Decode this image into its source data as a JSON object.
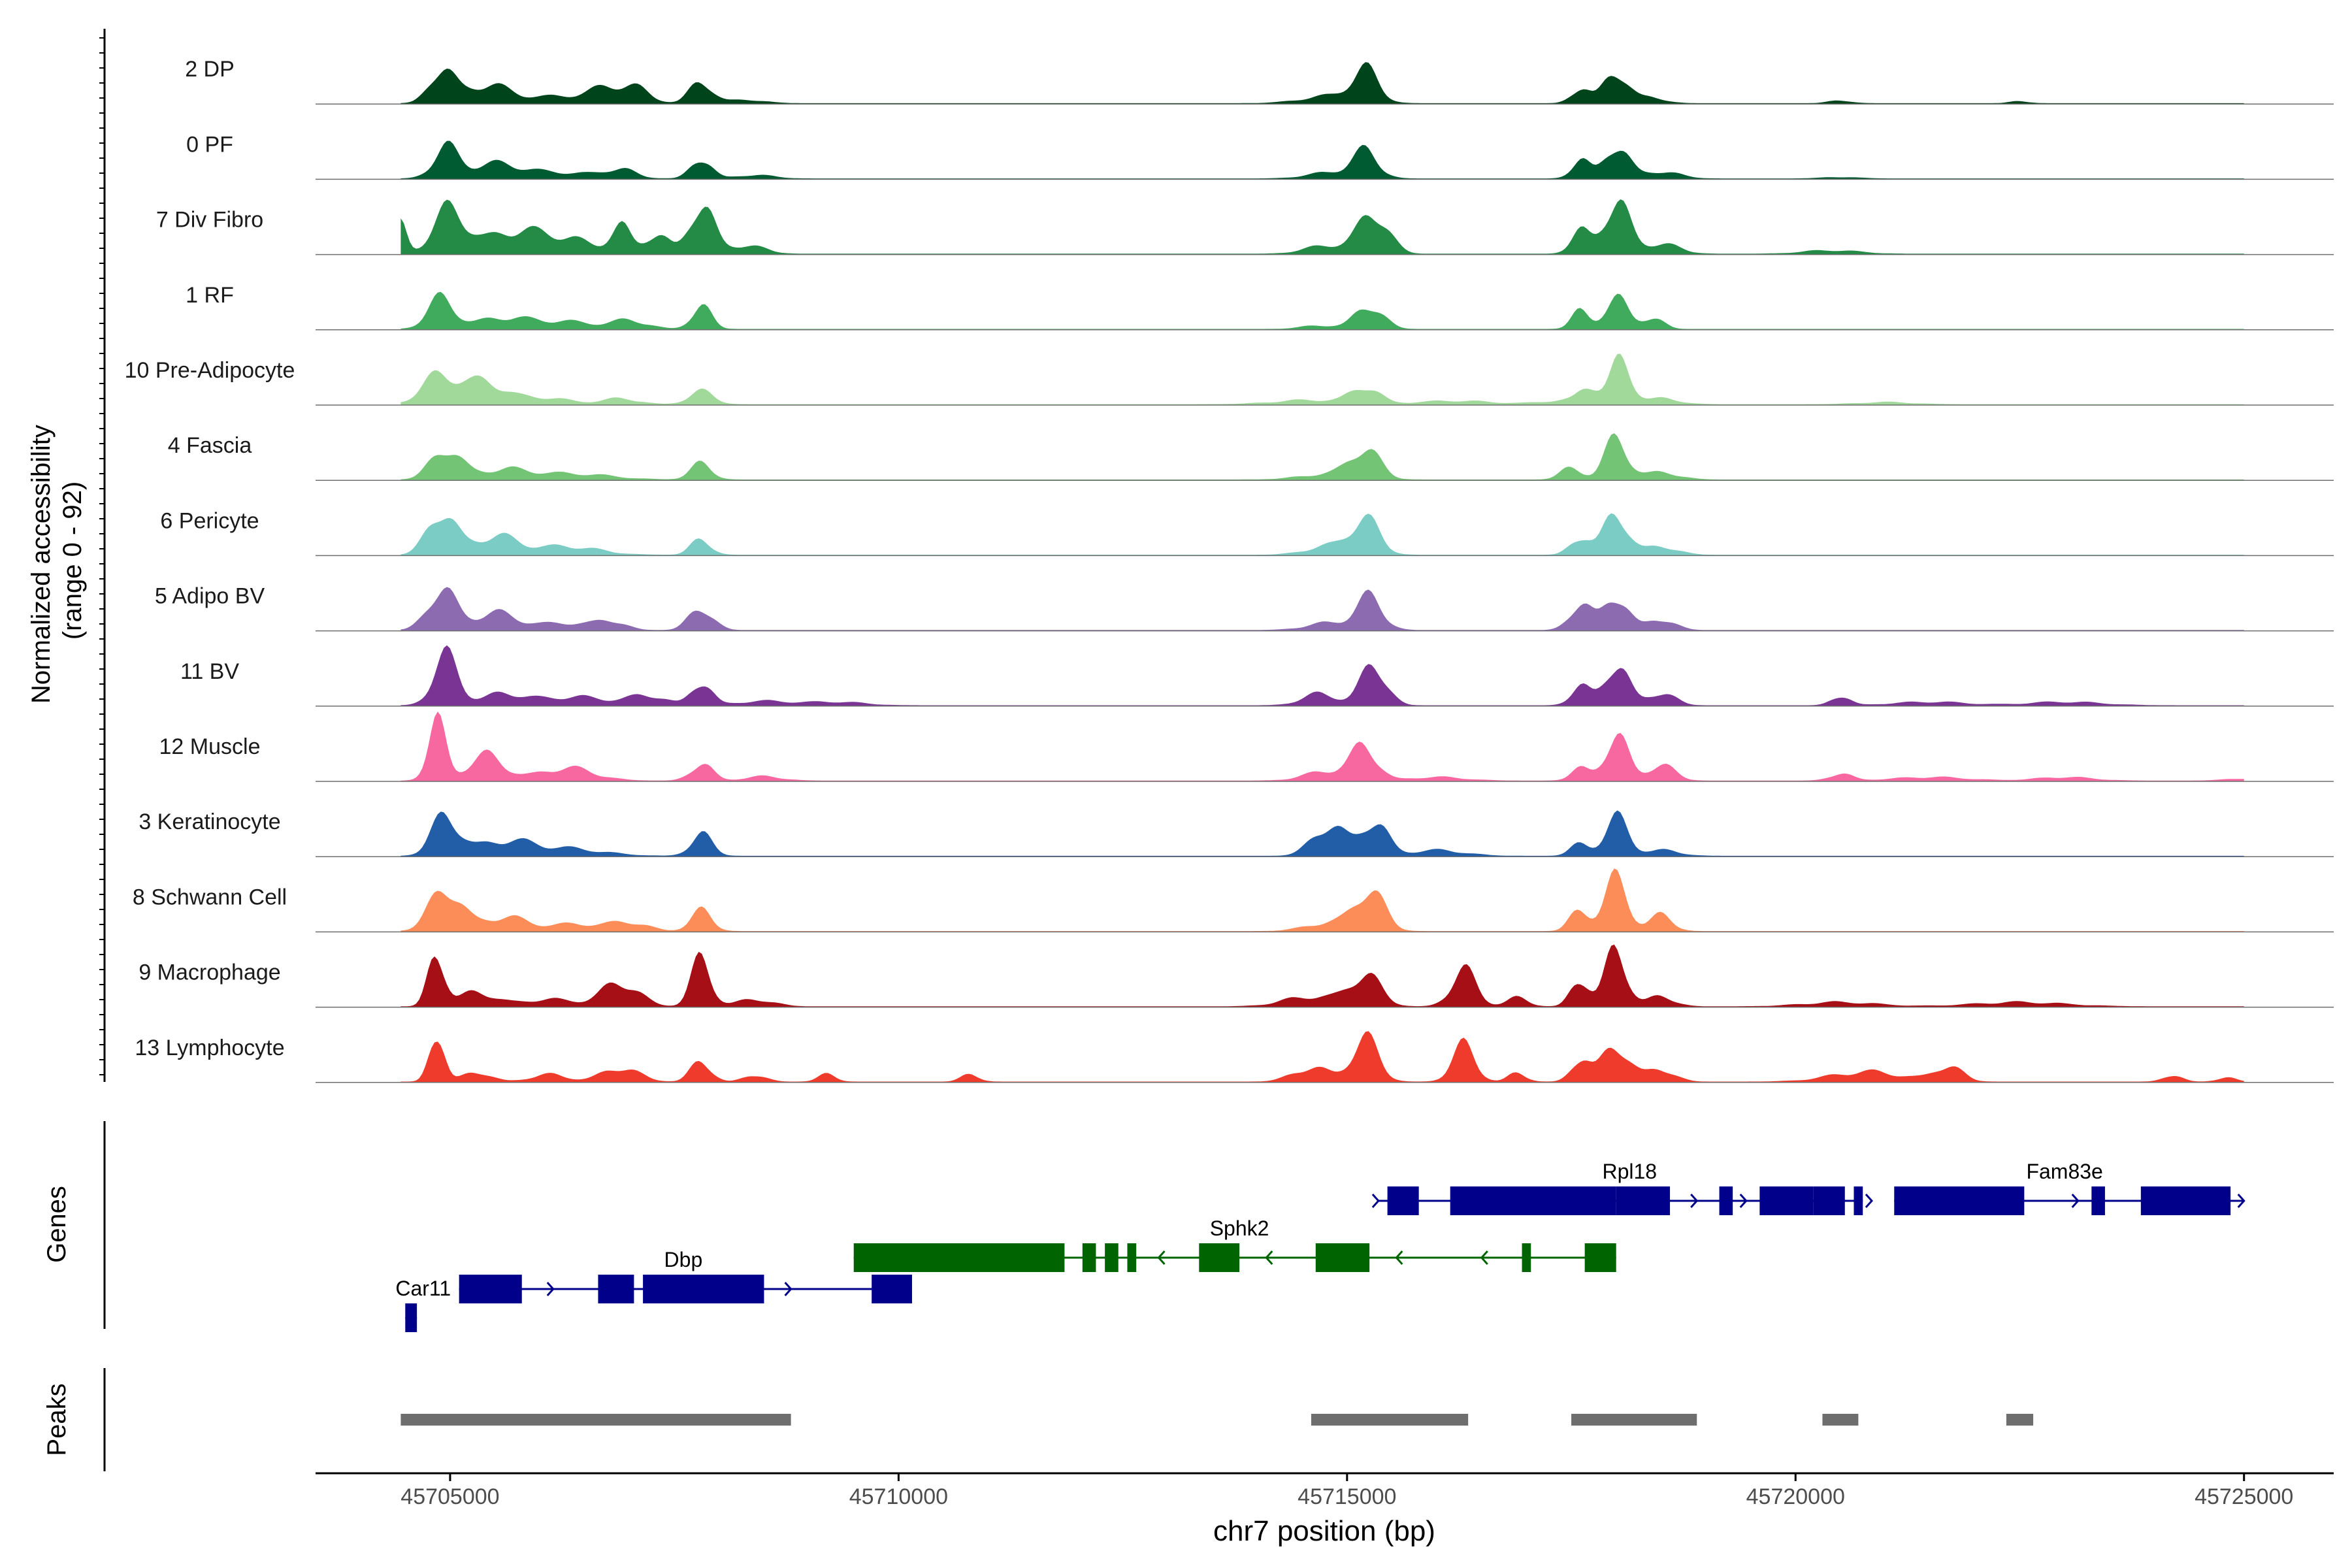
{
  "chart_data": {
    "type": "area",
    "title": "",
    "xlabel": "chr7 position (bp)",
    "xlim": [
      45703500,
      45726000
    ],
    "x_ticks": [
      {
        "value": 45705000,
        "label": "45705000"
      },
      {
        "value": 45710000,
        "label": "45710000"
      },
      {
        "value": 45715000,
        "label": "45715000"
      },
      {
        "value": 45720000,
        "label": "45720000"
      },
      {
        "value": 45725000,
        "label": "45725000"
      }
    ],
    "coverage_ylabel": {
      "line1": "Normalized accessibility",
      "line2": "(range 0 - 92)"
    },
    "ylim": [
      0,
      92
    ],
    "genes_label": "Genes",
    "peaks_label": "Peaks",
    "peak_color": "#6e6e6e",
    "series": [
      {
        "name": "2 DP",
        "color": "#00441b",
        "peaks": [
          [
            45704900,
            0.48,
            130
          ],
          [
            45705400,
            0.25,
            250
          ],
          [
            45706300,
            0.1,
            450
          ],
          [
            45706800,
            0.18,
            200
          ],
          [
            45707100,
            0.14,
            150
          ],
          [
            45707800,
            0.32,
            120
          ],
          [
            45708300,
            0.05,
            200
          ],
          [
            45715200,
            0.44,
            150
          ],
          [
            45714800,
            0.1,
            300
          ],
          [
            45718000,
            0.46,
            130
          ],
          [
            45717600,
            0.22,
            100
          ],
          [
            45718400,
            0.08,
            150
          ],
          [
            45720500,
            0.04,
            120
          ],
          [
            45722500,
            0.03,
            100
          ]
        ]
      },
      {
        "name": "0 PF",
        "color": "#005a32",
        "peaks": [
          [
            45704950,
            0.4,
            140
          ],
          [
            45705500,
            0.2,
            300
          ],
          [
            45706300,
            0.08,
            400
          ],
          [
            45706900,
            0.12,
            150
          ],
          [
            45707800,
            0.3,
            110
          ],
          [
            45708400,
            0.05,
            200
          ],
          [
            45715200,
            0.36,
            150
          ],
          [
            45714800,
            0.08,
            250
          ],
          [
            45718000,
            0.48,
            130
          ],
          [
            45717600,
            0.26,
            100
          ],
          [
            45718500,
            0.1,
            200
          ],
          [
            45720500,
            0.02,
            200
          ]
        ]
      },
      {
        "name": "7 Div Fibro",
        "color": "#238b45",
        "peaks": [
          [
            45704450,
            0.4,
            70
          ],
          [
            45705000,
            0.62,
            180
          ],
          [
            45705700,
            0.3,
            300
          ],
          [
            45706300,
            0.2,
            300
          ],
          [
            45706900,
            0.36,
            110
          ],
          [
            45707300,
            0.28,
            130
          ],
          [
            45707800,
            0.72,
            130
          ],
          [
            45708300,
            0.12,
            200
          ],
          [
            45714800,
            0.12,
            250
          ],
          [
            45715300,
            0.58,
            160
          ],
          [
            45717600,
            0.3,
            110
          ],
          [
            45718000,
            0.74,
            140
          ],
          [
            45718500,
            0.14,
            200
          ],
          [
            45720400,
            0.05,
            300
          ]
        ]
      },
      {
        "name": "1 RF",
        "color": "#41ab5d",
        "peaks": [
          [
            45704900,
            0.42,
            150
          ],
          [
            45705600,
            0.16,
            300
          ],
          [
            45706300,
            0.1,
            300
          ],
          [
            45707000,
            0.12,
            200
          ],
          [
            45707800,
            0.32,
            110
          ],
          [
            45715250,
            0.34,
            150
          ],
          [
            45714700,
            0.05,
            200
          ],
          [
            45717600,
            0.24,
            100
          ],
          [
            45718000,
            0.42,
            130
          ],
          [
            45718400,
            0.16,
            120
          ]
        ]
      },
      {
        "name": "10 Pre-Adipocyte",
        "color": "#a1d99b",
        "peaks": [
          [
            45704900,
            0.42,
            200
          ],
          [
            45705400,
            0.3,
            200
          ],
          [
            45706000,
            0.1,
            300
          ],
          [
            45706900,
            0.08,
            200
          ],
          [
            45707800,
            0.18,
            140
          ],
          [
            45715200,
            0.24,
            150
          ],
          [
            45714600,
            0.06,
            400
          ],
          [
            45716200,
            0.05,
            400
          ],
          [
            45717500,
            0.06,
            300
          ],
          [
            45718050,
            0.58,
            120
          ],
          [
            45717700,
            0.22,
            100
          ],
          [
            45718500,
            0.08,
            200
          ],
          [
            45721000,
            0.03,
            300
          ]
        ]
      },
      {
        "name": "4 Fascia",
        "color": "#74c476",
        "peaks": [
          [
            45704950,
            0.44,
            160
          ],
          [
            45705600,
            0.14,
            300
          ],
          [
            45706400,
            0.08,
            400
          ],
          [
            45707800,
            0.22,
            120
          ],
          [
            45715200,
            0.42,
            160
          ],
          [
            45714800,
            0.08,
            300
          ],
          [
            45717500,
            0.16,
            120
          ],
          [
            45718000,
            0.56,
            130
          ],
          [
            45718500,
            0.1,
            200
          ]
        ]
      },
      {
        "name": "6 Pericyte",
        "color": "#7bccc4",
        "peaks": [
          [
            45704900,
            0.62,
            150
          ],
          [
            45705500,
            0.26,
            250
          ],
          [
            45706300,
            0.12,
            350
          ],
          [
            45707800,
            0.22,
            110
          ],
          [
            45715200,
            0.48,
            160
          ],
          [
            45714800,
            0.12,
            250
          ],
          [
            45717600,
            0.26,
            110
          ],
          [
            45718000,
            0.6,
            130
          ],
          [
            45718500,
            0.12,
            180
          ]
        ]
      },
      {
        "name": "5 Adipo BV",
        "color": "#8c6bb1",
        "peaks": [
          [
            45704900,
            0.58,
            150
          ],
          [
            45705500,
            0.24,
            250
          ],
          [
            45706300,
            0.1,
            300
          ],
          [
            45706800,
            0.12,
            150
          ],
          [
            45707800,
            0.32,
            130
          ],
          [
            45715250,
            0.44,
            150
          ],
          [
            45714800,
            0.1,
            250
          ],
          [
            45717600,
            0.38,
            120
          ],
          [
            45718000,
            0.5,
            130
          ],
          [
            45718500,
            0.16,
            150
          ]
        ]
      },
      {
        "name": "11 BV",
        "color": "#7a3594",
        "peaks": [
          [
            45704950,
            0.68,
            140
          ],
          [
            45705600,
            0.16,
            250
          ],
          [
            45706400,
            0.12,
            350
          ],
          [
            45707200,
            0.14,
            200
          ],
          [
            45707800,
            0.34,
            110
          ],
          [
            45708500,
            0.06,
            300
          ],
          [
            45709300,
            0.05,
            300
          ],
          [
            45715300,
            0.58,
            140
          ],
          [
            45714700,
            0.16,
            200
          ],
          [
            45717600,
            0.26,
            110
          ],
          [
            45718000,
            0.6,
            130
          ],
          [
            45718500,
            0.18,
            150
          ],
          [
            45720500,
            0.14,
            100
          ],
          [
            45721500,
            0.05,
            400
          ],
          [
            45723000,
            0.05,
            400
          ]
        ]
      },
      {
        "name": "12 Muscle",
        "color": "#f768a1",
        "peaks": [
          [
            45704850,
            0.8,
            100
          ],
          [
            45705400,
            0.35,
            200
          ],
          [
            45706300,
            0.18,
            300
          ],
          [
            45707800,
            0.24,
            120
          ],
          [
            45708500,
            0.06,
            200
          ],
          [
            45715200,
            0.46,
            140
          ],
          [
            45714800,
            0.14,
            250
          ],
          [
            45716000,
            0.05,
            300
          ],
          [
            45717600,
            0.16,
            110
          ],
          [
            45718000,
            0.62,
            130
          ],
          [
            45718500,
            0.22,
            150
          ],
          [
            45720500,
            0.1,
            120
          ],
          [
            45721500,
            0.05,
            400
          ],
          [
            45723000,
            0.05,
            300
          ],
          [
            45725000,
            0.03,
            200
          ]
        ]
      },
      {
        "name": "3 Keratinocyte",
        "color": "#225ea8",
        "peaks": [
          [
            45704950,
            0.56,
            150
          ],
          [
            45705600,
            0.2,
            300
          ],
          [
            45706300,
            0.1,
            400
          ],
          [
            45707800,
            0.3,
            120
          ],
          [
            45714800,
            0.44,
            180
          ],
          [
            45715300,
            0.5,
            140
          ],
          [
            45716000,
            0.08,
            300
          ],
          [
            45717600,
            0.16,
            110
          ],
          [
            45718000,
            0.52,
            130
          ],
          [
            45718500,
            0.08,
            200
          ]
        ]
      },
      {
        "name": "8 Schwann Cell",
        "color": "#fc8d59",
        "peaks": [
          [
            45704950,
            0.62,
            170
          ],
          [
            45705600,
            0.2,
            250
          ],
          [
            45706400,
            0.1,
            300
          ],
          [
            45707000,
            0.12,
            200
          ],
          [
            45707800,
            0.28,
            120
          ],
          [
            45715250,
            0.58,
            160
          ],
          [
            45714800,
            0.12,
            250
          ],
          [
            45717600,
            0.3,
            110
          ],
          [
            45718000,
            0.72,
            130
          ],
          [
            45718500,
            0.22,
            130
          ]
        ]
      },
      {
        "name": "9 Macrophage",
        "color": "#a50f15",
        "peaks": [
          [
            45704850,
            0.78,
            90
          ],
          [
            45705300,
            0.2,
            200
          ],
          [
            45706100,
            0.1,
            300
          ],
          [
            45706900,
            0.34,
            200
          ],
          [
            45707800,
            0.66,
            110
          ],
          [
            45708400,
            0.1,
            200
          ],
          [
            45715200,
            0.44,
            170
          ],
          [
            45714600,
            0.14,
            300
          ],
          [
            45716300,
            0.5,
            140
          ],
          [
            45716900,
            0.12,
            120
          ],
          [
            45717600,
            0.4,
            100
          ],
          [
            45718000,
            0.8,
            120
          ],
          [
            45718500,
            0.14,
            150
          ],
          [
            45720500,
            0.06,
            400
          ],
          [
            45722500,
            0.06,
            500
          ]
        ]
      },
      {
        "name": "13 Lymphocyte",
        "color": "#ef3b2c",
        "peaks": [
          [
            45704850,
            0.76,
            80
          ],
          [
            45705300,
            0.14,
            150
          ],
          [
            45706100,
            0.1,
            200
          ],
          [
            45706900,
            0.2,
            200
          ],
          [
            45707800,
            0.3,
            110
          ],
          [
            45708400,
            0.1,
            120
          ],
          [
            45709200,
            0.1,
            100
          ],
          [
            45710800,
            0.1,
            100
          ],
          [
            45715200,
            0.6,
            150
          ],
          [
            45714600,
            0.2,
            200
          ],
          [
            45716300,
            0.5,
            130
          ],
          [
            45716900,
            0.12,
            100
          ],
          [
            45717600,
            0.34,
            100
          ],
          [
            45718000,
            0.52,
            150
          ],
          [
            45718500,
            0.18,
            150
          ],
          [
            45720800,
            0.14,
            400
          ],
          [
            45721700,
            0.22,
            150
          ],
          [
            45724200,
            0.1,
            100
          ],
          [
            45724800,
            0.06,
            100
          ]
        ]
      }
    ],
    "genes": [
      {
        "name": "Car11",
        "strand": "+",
        "color": "#00008b",
        "row": 1,
        "label_x": 45704700,
        "span": [
          45704500,
          45704630
        ],
        "exons": [
          [
            45704500,
            45704630
          ]
        ],
        "arrows": []
      },
      {
        "name": "Dbp",
        "strand": "+",
        "color": "#00008b",
        "row": 0,
        "label_x": 45707600,
        "span": [
          45705100,
          45710150
        ],
        "exons": [
          [
            45705100,
            45705800
          ],
          [
            45706650,
            45707050
          ],
          [
            45707150,
            45708500
          ],
          [
            45709700,
            45710150
          ]
        ],
        "arrows": [
          45706150,
          45708800
        ]
      },
      {
        "name": "Sphk2",
        "strand": "-",
        "color": "#006400",
        "row": -1,
        "label_x": 45713800,
        "span": [
          45709500,
          45718000
        ],
        "exons": [
          [
            45709500,
            45711850
          ],
          [
            45712050,
            45712200
          ],
          [
            45712300,
            45712450
          ],
          [
            45712550,
            45712650
          ],
          [
            45713350,
            45713800
          ],
          [
            45714650,
            45715250
          ],
          [
            45716950,
            45717050
          ],
          [
            45717650,
            45718000
          ]
        ],
        "arrows": [
          45712900,
          45714100,
          45715550,
          45716500
        ]
      },
      {
        "name": "Rpl18",
        "strand": "+",
        "color": "#00008b",
        "row": -2,
        "label_x": 45718150,
        "span": [
          45715350,
          45720750
        ],
        "exons": [
          [
            45715450,
            45715800
          ],
          [
            45716150,
            45718000
          ],
          [
            45718000,
            45718600
          ],
          [
            45719150,
            45719300
          ],
          [
            45719600,
            45720200
          ],
          [
            45720200,
            45720550
          ],
          [
            45720650,
            45720750
          ]
        ],
        "arrows": [
          45715350,
          45718900,
          45719450
        ]
      },
      {
        "name": "Fam83e",
        "strand": "+",
        "color": "#00008b",
        "row": -2,
        "label_x": 45723000,
        "span": [
          45721100,
          45725000
        ],
        "exons": [
          [
            45721100,
            45722550
          ],
          [
            45723300,
            45723450
          ],
          [
            45723850,
            45724850
          ]
        ],
        "arrows": [
          45720850,
          45723150,
          45725000
        ]
      }
    ],
    "peaks": [
      [
        45704450,
        45708800
      ],
      [
        45714600,
        45716350
      ],
      [
        45717500,
        45718900
      ],
      [
        45720300,
        45720700
      ],
      [
        45722350,
        45722650
      ]
    ]
  }
}
